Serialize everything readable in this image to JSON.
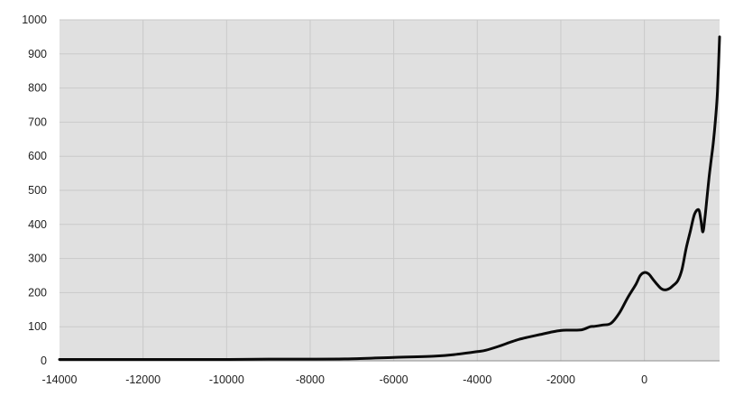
{
  "chart_data": {
    "type": "line",
    "title": "",
    "xlabel": "",
    "ylabel": "",
    "xlim": [
      -14000,
      1800
    ],
    "ylim": [
      0,
      1000
    ],
    "x_ticks": [
      -14000,
      -12000,
      -10000,
      -8000,
      -6000,
      -4000,
      -2000,
      0
    ],
    "x_tick_labels": [
      "-14000",
      "-12000",
      "-10000",
      "-8000",
      "-6000",
      "-4000",
      "-2000",
      "0"
    ],
    "y_ticks": [
      0,
      100,
      200,
      300,
      400,
      500,
      600,
      700,
      800,
      900,
      1000
    ],
    "y_tick_labels": [
      "0",
      "100",
      "200",
      "300",
      "400",
      "500",
      "600",
      "700",
      "800",
      "900",
      "1000"
    ],
    "grid": true,
    "legend": "none",
    "colors": {
      "plot_background": "#e0e0e0",
      "grid": "#c9c9c9",
      "line": "#0a0a0a"
    },
    "series": [
      {
        "x": [
          -14000,
          -12000,
          -10000,
          -9000,
          -8000,
          -7000,
          -6000,
          -5000,
          -4500,
          -4000,
          -3800,
          -3500,
          -3200,
          -3000,
          -2800,
          -2500,
          -2200,
          -2000,
          -1800,
          -1500,
          -1300,
          -1200,
          -1000,
          -800,
          -600,
          -400,
          -200,
          -100,
          0,
          100,
          200,
          300,
          400,
          500,
          600,
          700,
          800,
          900,
          1000,
          1100,
          1200,
          1300,
          1350,
          1400,
          1450,
          1500,
          1550,
          1600,
          1650,
          1700,
          1750,
          1800
        ],
        "y": [
          4,
          4,
          4,
          5,
          5,
          6,
          10,
          14,
          19,
          27,
          31,
          42,
          55,
          63,
          69,
          77,
          85,
          89,
          90,
          91,
          100,
          101,
          105,
          110,
          140,
          185,
          225,
          250,
          259,
          255,
          240,
          225,
          212,
          208,
          212,
          222,
          235,
          268,
          330,
          380,
          430,
          443,
          415,
          378,
          420,
          480,
          540,
          590,
          640,
          705,
          790,
          950
        ]
      }
    ]
  }
}
